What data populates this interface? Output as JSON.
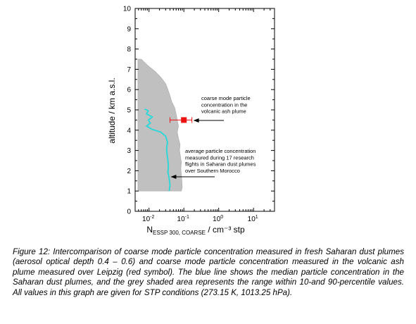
{
  "chart_data": {
    "type": "line",
    "title": "",
    "xlabel": "N_ESSP 300, COARSE / cm^-3 stp",
    "xlabel_main": "N",
    "xlabel_sub": "ESSP 300, COARSE",
    "xlabel_unit": " / cm⁻³ stp",
    "ylabel": "altitude / km a.s.l.",
    "x_scale": "log",
    "xlim": [
      0.004,
      40
    ],
    "ylim": [
      0,
      10
    ],
    "x_ticks": [
      {
        "value": 0.01,
        "base": "10",
        "exp": "-2"
      },
      {
        "value": 0.1,
        "base": "10",
        "exp": "-1"
      },
      {
        "value": 1,
        "base": "10",
        "exp": "0"
      },
      {
        "value": 10,
        "base": "10",
        "exp": "1"
      }
    ],
    "y_ticks": [
      "0",
      "1",
      "2",
      "3",
      "4",
      "5",
      "6",
      "7",
      "8",
      "9",
      "10"
    ],
    "grid": false,
    "colors": {
      "median": "#33d6d6",
      "band": "#c0c0c0",
      "point": "#ee1111",
      "axis": "#000000"
    },
    "series": [
      {
        "kind": "band",
        "altitude": [
          1.0,
          1.2,
          1.5,
          1.8,
          2.1,
          2.4,
          2.7,
          3.0,
          3.3,
          3.6,
          3.9,
          4.2,
          4.5,
          4.8,
          5.1,
          5.4,
          5.7,
          6.0,
          6.3,
          6.6,
          6.9,
          7.2,
          7.5
        ],
        "p10": [
          0.0048,
          0.0048,
          0.0048,
          0.0048,
          0.0048,
          0.0048,
          0.0048,
          0.0048,
          0.0048,
          0.0048,
          0.0048,
          0.0048,
          0.0048,
          0.0048,
          0.0048,
          0.0048,
          0.0048,
          0.0048,
          0.0048,
          0.0048,
          0.0048,
          0.0048,
          0.0048
        ],
        "p90": [
          0.085,
          0.09,
          0.088,
          0.085,
          0.082,
          0.085,
          0.08,
          0.075,
          0.078,
          0.07,
          0.065,
          0.07,
          0.065,
          0.06,
          0.055,
          0.045,
          0.04,
          0.035,
          0.03,
          0.022,
          0.015,
          0.009,
          0.006
        ]
      },
      {
        "kind": "median",
        "altitude": [
          1.0,
          1.3,
          1.6,
          1.9,
          2.2,
          2.5,
          2.8,
          3.1,
          3.4,
          3.7,
          3.9,
          4.05,
          4.2,
          4.35,
          4.5,
          4.65,
          4.8,
          4.95,
          5.05
        ],
        "values": [
          0.038,
          0.04,
          0.038,
          0.035,
          0.036,
          0.035,
          0.033,
          0.032,
          0.034,
          0.03,
          0.022,
          0.012,
          0.0085,
          0.011,
          0.0095,
          0.0125,
          0.0085,
          0.0095,
          0.0075
        ]
      },
      {
        "kind": "point",
        "name": "volcanic ash plume",
        "x": 0.1,
        "y": 4.5,
        "xerr_low": 0.04,
        "xerr_high": 0.17
      }
    ],
    "annotations": [
      {
        "lines": [
          "coarse mode particle",
          "concentration in the",
          "volcanic ash plume"
        ],
        "target_x": 0.17,
        "target_y": 4.5
      },
      {
        "lines": [
          "average particle concentration",
          "measured during 17 research",
          "flights in Saharan dust plumes",
          "over Southern Morocco"
        ],
        "target_x": 0.038,
        "target_y": 1.75
      }
    ]
  },
  "caption": "Figure 12: Intercomparison of coarse mode particle concentration measured in fresh Saharan dust plumes (aerosol optical depth 0.4 – 0.6) and coarse mode particle concentration measured in the volcanic ash plume measured over Leipzig (red symbol). The blue line shows the median particle concentration in the Saharan dust plumes, and the grey shaded area represents the range within 10-and 90-percentile values. All values in this graph are given for STP conditions (273.15 K, 1013.25 hPa)."
}
